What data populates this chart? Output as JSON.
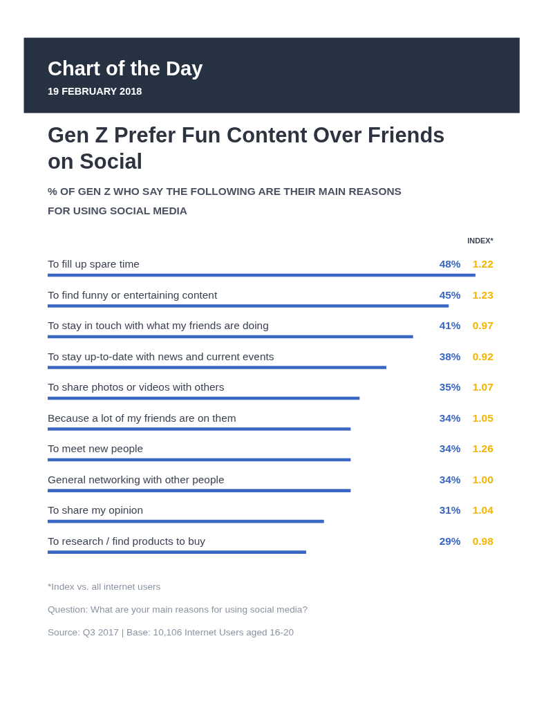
{
  "chart_data": {
    "type": "bar",
    "orientation": "horizontal",
    "title": [
      "Gen Z Prefer Fun Content Over Friends",
      "on Social"
    ],
    "subtitle": [
      "% OF GEN Z WHO SAY THE FOLLOWING ARE THEIR MAIN REASONS",
      "FOR USING SOCIAL MEDIA"
    ],
    "categories": [
      "To fill up spare time",
      "To find funny or entertaining content",
      "To stay in touch with what my friends are doing",
      "To stay up-to-date with news and current events",
      "To share photos or videos with others",
      "Because a lot of my friends are on them",
      "To meet new people",
      "General networking with other people",
      "To share my opinion",
      "To research / find products to buy"
    ],
    "values": [
      48,
      45,
      41,
      38,
      35,
      34,
      34,
      34,
      31,
      29
    ],
    "value_labels": [
      "48%",
      "45%",
      "41%",
      "38%",
      "35%",
      "34%",
      "34%",
      "34%",
      "31%",
      "29%"
    ],
    "color": "#3a66c4",
    "tick_labels": false,
    "annotations": [
      "Chart of the Day",
      "19 FEBRUARY 2018",
      "INDEX*",
      "1.22",
      "1.23",
      "0.97",
      "0.92",
      "1.07",
      "1.05",
      "1.26",
      "1.00",
      "1.04",
      "0.98",
      "*Index vs. all internet users",
      "Question: What are your main reasons for using social media?",
      "Source: Q3 2017  |  Base: 10,106 Internet Users aged 16-20"
    ]
  }
}
